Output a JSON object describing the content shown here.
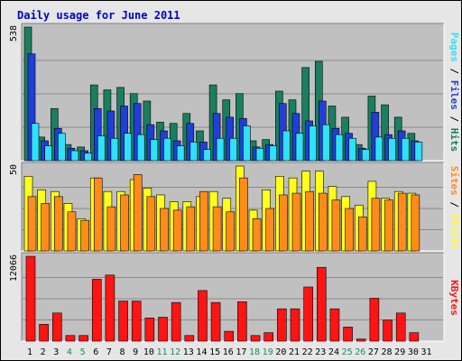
{
  "title": "Daily usage for June 2011",
  "colors": {
    "hits": "#1a7f5e",
    "files": "#1f3fd6",
    "pages": "#2fe0ff",
    "visits": "#ffff1a",
    "sites": "#ff8c1a",
    "kbytes": "#ff1414",
    "panel_bg": "#c0c0c0",
    "weekend_label": "#1f8a5e",
    "weekday_label": "#000000"
  },
  "chart_data": [
    {
      "type": "bar",
      "panel": "hits-files-pages",
      "ymax_label": "538",
      "ylim": [
        0,
        538
      ],
      "legend": [
        "Pages",
        "Files",
        "Hits"
      ],
      "legend_separator": " / ",
      "x": [
        1,
        2,
        3,
        4,
        5,
        6,
        7,
        8,
        9,
        10,
        11,
        12,
        13,
        14,
        15,
        16,
        17,
        18,
        19,
        20,
        21,
        22,
        23,
        24,
        25,
        26,
        27,
        28,
        29,
        30,
        31
      ],
      "series": [
        {
          "name": "Hits",
          "values": [
            538,
            95,
            210,
            65,
            55,
            305,
            285,
            295,
            270,
            240,
            155,
            150,
            190,
            120,
            305,
            245,
            270,
            80,
            85,
            280,
            245,
            375,
            400,
            220,
            175,
            65,
            260,
            225,
            175,
            110,
            0
          ]
        },
        {
          "name": "Files",
          "values": [
            430,
            80,
            130,
            50,
            40,
            210,
            200,
            220,
            230,
            145,
            120,
            80,
            150,
            75,
            190,
            175,
            170,
            55,
            65,
            230,
            190,
            160,
            240,
            130,
            110,
            50,
            195,
            105,
            120,
            80,
            0
          ]
        },
        {
          "name": "Pages",
          "values": [
            150,
            60,
            110,
            40,
            30,
            100,
            90,
            110,
            105,
            85,
            90,
            60,
            75,
            45,
            90,
            90,
            140,
            50,
            60,
            120,
            110,
            140,
            145,
            105,
            90,
            45,
            95,
            90,
            90,
            75,
            0
          ]
        }
      ]
    },
    {
      "type": "bar",
      "panel": "visits-sites",
      "ymax_label": "50",
      "ylim": [
        0,
        50
      ],
      "legend": [
        "Sites",
        "Visits"
      ],
      "legend_separator": " / ",
      "x": [
        1,
        2,
        3,
        4,
        5,
        6,
        7,
        8,
        9,
        10,
        11,
        12,
        13,
        14,
        15,
        16,
        17,
        18,
        19,
        20,
        21,
        22,
        23,
        24,
        25,
        26,
        27,
        28,
        29,
        30,
        31
      ],
      "series": [
        {
          "name": "Visits",
          "values": [
            44,
            36,
            35,
            28,
            19,
            43,
            35,
            35,
            42,
            37,
            33,
            29,
            29,
            32,
            35,
            31,
            50,
            24,
            36,
            44,
            43,
            47,
            47,
            38,
            32,
            27,
            41,
            31,
            35,
            34,
            0
          ]
        },
        {
          "name": "Sites",
          "values": [
            32,
            28,
            32,
            23,
            18,
            43,
            26,
            33,
            45,
            32,
            25,
            24,
            26,
            35,
            26,
            23,
            43,
            19,
            25,
            33,
            34,
            35,
            34,
            30,
            25,
            20,
            31,
            30,
            34,
            33,
            0
          ]
        }
      ]
    },
    {
      "type": "bar",
      "panel": "kbytes",
      "ymax_label": "12066",
      "ylim": [
        0,
        12066
      ],
      "legend": [
        "KBytes"
      ],
      "legend_separator": "",
      "x": [
        1,
        2,
        3,
        4,
        5,
        6,
        7,
        8,
        9,
        10,
        11,
        12,
        13,
        14,
        15,
        16,
        17,
        18,
        19,
        20,
        21,
        22,
        23,
        24,
        25,
        26,
        27,
        28,
        29,
        30,
        31
      ],
      "series": [
        {
          "name": "KBytes",
          "values": [
            12066,
            2400,
            4000,
            800,
            800,
            8800,
            9400,
            5700,
            5700,
            3300,
            3400,
            5500,
            800,
            7200,
            5500,
            1400,
            5600,
            800,
            1200,
            4600,
            4600,
            7700,
            10500,
            4600,
            2000,
            300,
            6100,
            3000,
            4000,
            1200,
            0
          ]
        }
      ]
    }
  ],
  "x_labels": [
    "1",
    "2",
    "3",
    "4",
    "5",
    "6",
    "7",
    "8",
    "9",
    "10",
    "11",
    "12",
    "13",
    "14",
    "15",
    "16",
    "17",
    "18",
    "19",
    "20",
    "21",
    "22",
    "23",
    "24",
    "25",
    "26",
    "27",
    "28",
    "29",
    "30",
    "31"
  ],
  "weekend_days": [
    4,
    5,
    11,
    12,
    18,
    19,
    25,
    26
  ]
}
